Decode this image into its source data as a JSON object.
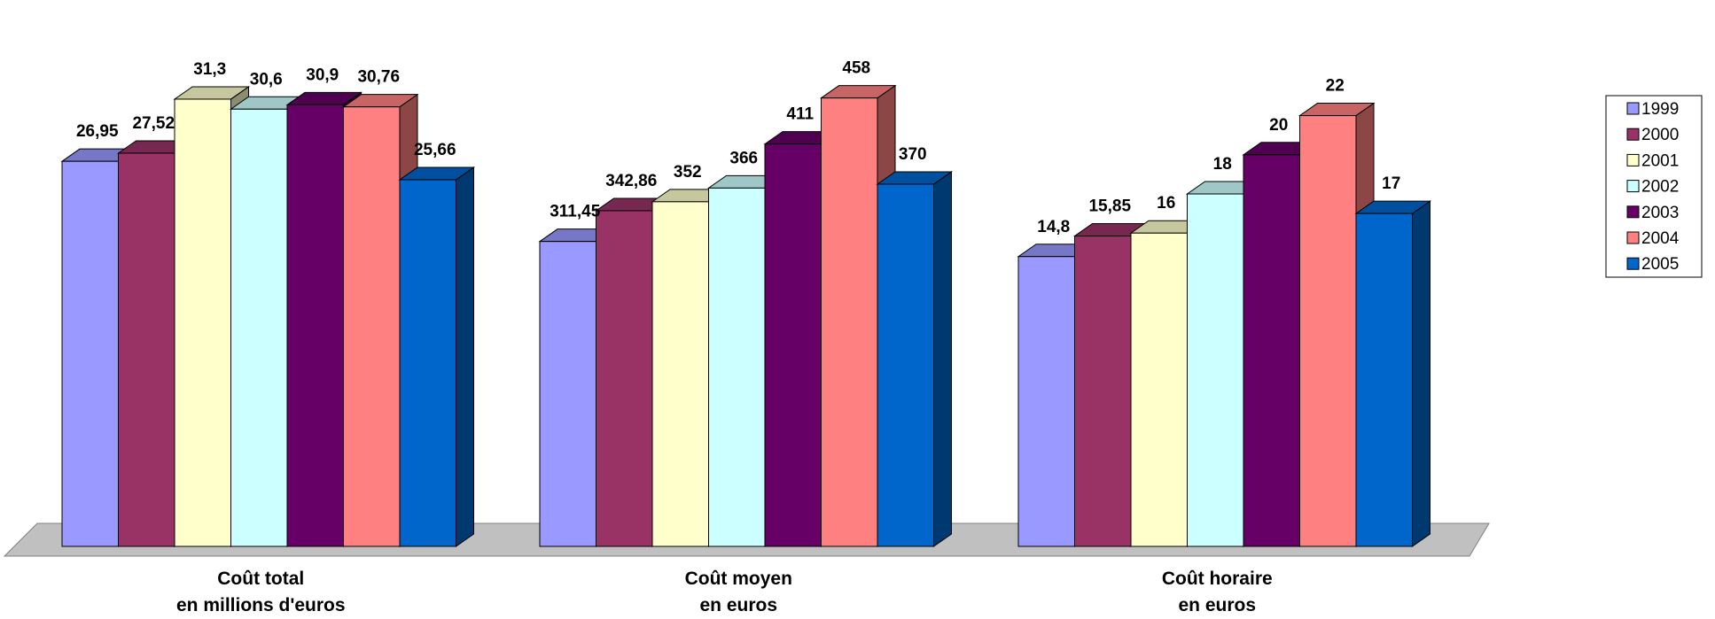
{
  "chart_data": {
    "type": "bar",
    "style": "3d-clustered-column",
    "groups": [
      {
        "label_lines": [
          "Coût total",
          "en millions d'euros"
        ],
        "scale_max": 37
      },
      {
        "label_lines": [
          "Coût moyen",
          "en euros"
        ],
        "scale_max": 540
      },
      {
        "label_lines": [
          "Coût horaire",
          "en euros"
        ],
        "scale_max": 27
      }
    ],
    "series": [
      {
        "name": "1999",
        "color": "#9999ff",
        "values": [
          26.95,
          311.45,
          14.8
        ],
        "labels": [
          "26,95",
          "311,45",
          "14,8"
        ]
      },
      {
        "name": "2000",
        "color": "#993366",
        "values": [
          27.52,
          342.86,
          15.85
        ],
        "labels": [
          "27,52",
          "342,86",
          "15,85"
        ]
      },
      {
        "name": "2001",
        "color": "#ffffcc",
        "values": [
          31.3,
          352,
          16
        ],
        "labels": [
          "31,3",
          "352",
          "16"
        ]
      },
      {
        "name": "2002",
        "color": "#ccffff",
        "values": [
          30.6,
          366,
          18
        ],
        "labels": [
          "30,6",
          "366",
          "18"
        ]
      },
      {
        "name": "2003",
        "color": "#660066",
        "values": [
          30.9,
          411,
          20
        ],
        "labels": [
          "30,9",
          "411",
          "20"
        ]
      },
      {
        "name": "2004",
        "color": "#ff8080",
        "values": [
          30.76,
          458,
          22
        ],
        "labels": [
          "30,76",
          "458",
          "22"
        ]
      },
      {
        "name": "2005",
        "color": "#0066cc",
        "values": [
          25.66,
          370,
          17
        ],
        "labels": [
          "25,66",
          "370",
          "17"
        ]
      }
    ],
    "floor_color": "#c0c0c0",
    "legend_position": "right"
  }
}
